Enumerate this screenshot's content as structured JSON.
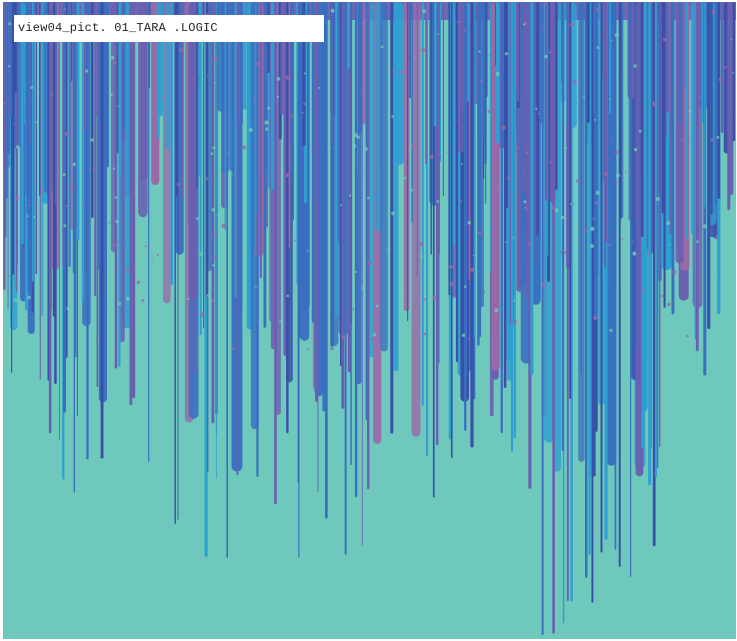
{
  "caption": {
    "text": "view04_pict. 01_TARA .LOGIC"
  },
  "artwork": {
    "subject": "dense vertical drip streaks hanging from top edge",
    "colors": {
      "background": "#6fc8bc",
      "blue": "#3a6fc0",
      "cyan": "#2f9ed0",
      "violet": "#6b5fb0",
      "mauve": "#9a6aa8",
      "deep_blue": "#3a4fa8",
      "frame": "#ffffff"
    }
  }
}
